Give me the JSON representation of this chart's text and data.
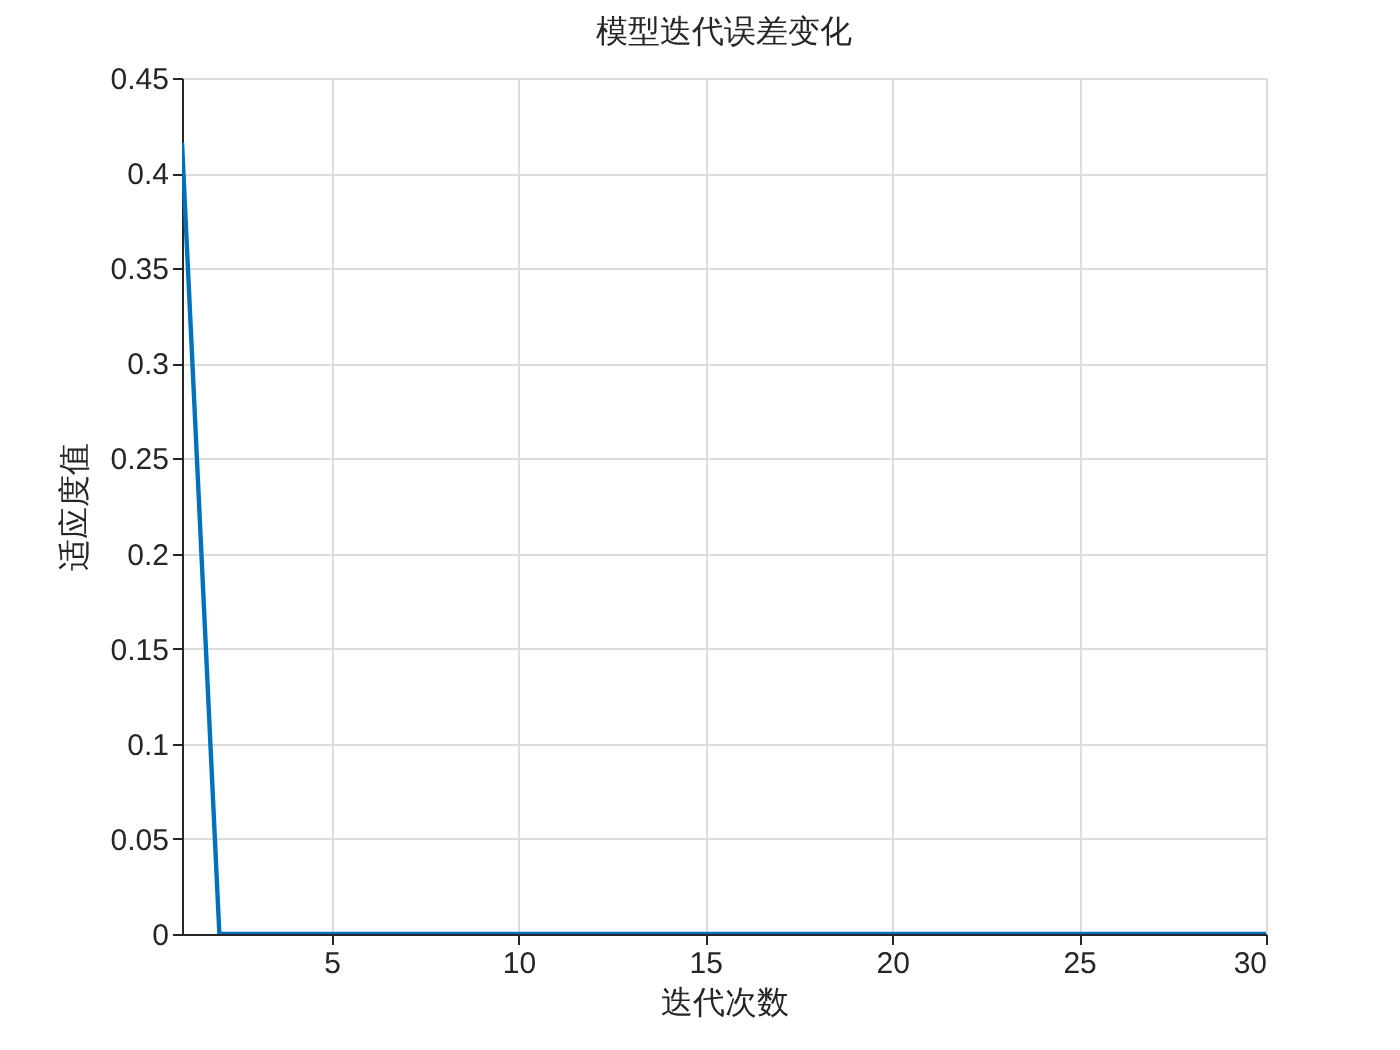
{
  "chart_data": {
    "type": "line",
    "title": "模型迭代误差变化",
    "xlabel": "迭代次数",
    "ylabel": "适应度值",
    "x": [
      1,
      2,
      3,
      4,
      5,
      6,
      7,
      8,
      9,
      10,
      11,
      12,
      13,
      14,
      15,
      16,
      17,
      18,
      19,
      20,
      21,
      22,
      23,
      24,
      25,
      26,
      27,
      28,
      29,
      30
    ],
    "series": [
      {
        "color": "#0072bd",
        "values": [
          0.416,
          0,
          0,
          0,
          0,
          0,
          0,
          0,
          0,
          0,
          0,
          0,
          0,
          0,
          0,
          0,
          0,
          0,
          0,
          0,
          0,
          0,
          0,
          0,
          0,
          0,
          0,
          0,
          0,
          0
        ]
      }
    ],
    "xlim": [
      1,
      30
    ],
    "xticks": [
      5,
      10,
      15,
      20,
      25,
      30
    ],
    "ylim": [
      0,
      0.45
    ],
    "yticks": [
      0,
      0.05,
      0.1,
      0.15,
      0.2,
      0.25,
      0.3,
      0.35,
      0.4,
      0.45
    ],
    "grid": true,
    "line_style": "solid"
  }
}
